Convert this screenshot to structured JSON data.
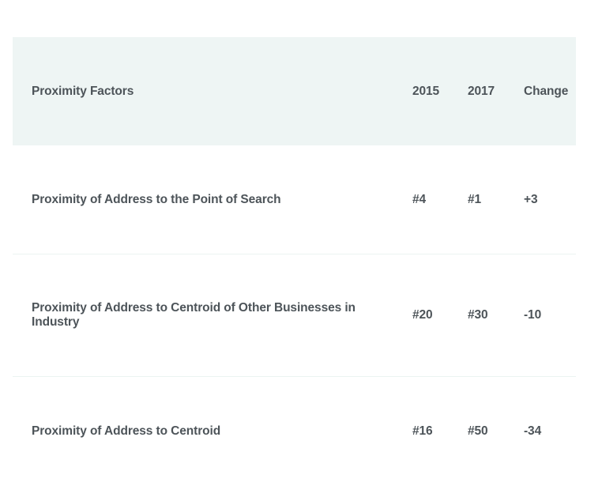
{
  "table": {
    "header": {
      "factor": "Proximity Factors",
      "year_2015": "2015",
      "year_2017": "2017",
      "change": "Change"
    },
    "rows": [
      {
        "factor": "Proximity of Address to the Point of Search",
        "rank_2015": "#4",
        "rank_2017": "#1",
        "change": "+3"
      },
      {
        "factor": "Proximity of Address to Centroid of Other Businesses in Industry",
        "rank_2015": "#20",
        "rank_2017": "#30",
        "change": "-10"
      },
      {
        "factor": "Proximity of Address to Centroid",
        "rank_2015": "#16",
        "rank_2017": "#50",
        "change": "-34"
      }
    ],
    "colors": {
      "header_bg": "#eef5f4",
      "divider": "#ebf3f1",
      "text": "#4d5459",
      "page_bg": "#ffffff"
    }
  }
}
